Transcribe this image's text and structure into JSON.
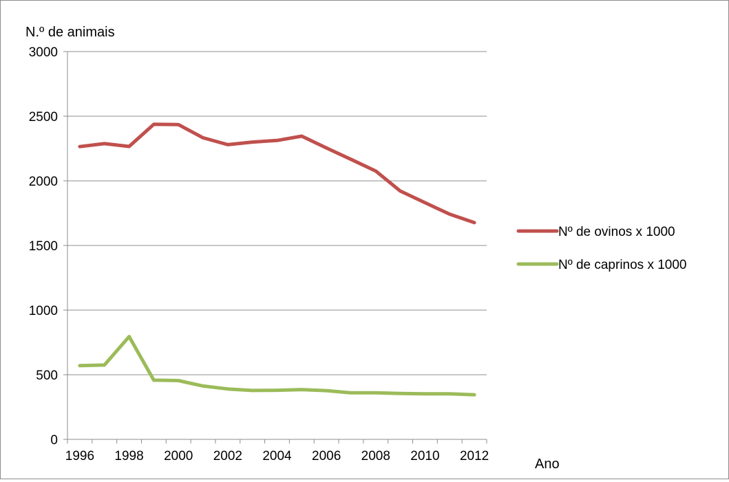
{
  "chart_data": {
    "type": "line",
    "title": "",
    "ylabel": "N.º de animais",
    "xlabel": "Ano",
    "ylim": [
      0,
      3000
    ],
    "yticks": [
      0,
      500,
      1000,
      1500,
      2000,
      2500,
      3000
    ],
    "x": [
      1996,
      1997,
      1998,
      1999,
      2000,
      2001,
      2002,
      2003,
      2004,
      2005,
      2006,
      2007,
      2008,
      2009,
      2010,
      2011,
      2012
    ],
    "xtick_labels": [
      "1996",
      "1998",
      "2000",
      "2002",
      "2004",
      "2006",
      "2008",
      "2010",
      "2012"
    ],
    "grid": "horizontal",
    "legend_position": "right",
    "series": [
      {
        "name": "Nº de ovinos x 1000",
        "color": "#c0504d",
        "values": [
          2265,
          2288,
          2266,
          2437,
          2435,
          2333,
          2280,
          2300,
          2312,
          2346,
          2255,
          2166,
          2076,
          1921,
          1831,
          1742,
          1677
        ]
      },
      {
        "name": "Nº de caprinos x 1000",
        "color": "#9bbb59",
        "values": [
          570,
          575,
          795,
          458,
          455,
          413,
          390,
          378,
          380,
          385,
          377,
          360,
          360,
          355,
          352,
          352,
          345
        ]
      }
    ]
  }
}
